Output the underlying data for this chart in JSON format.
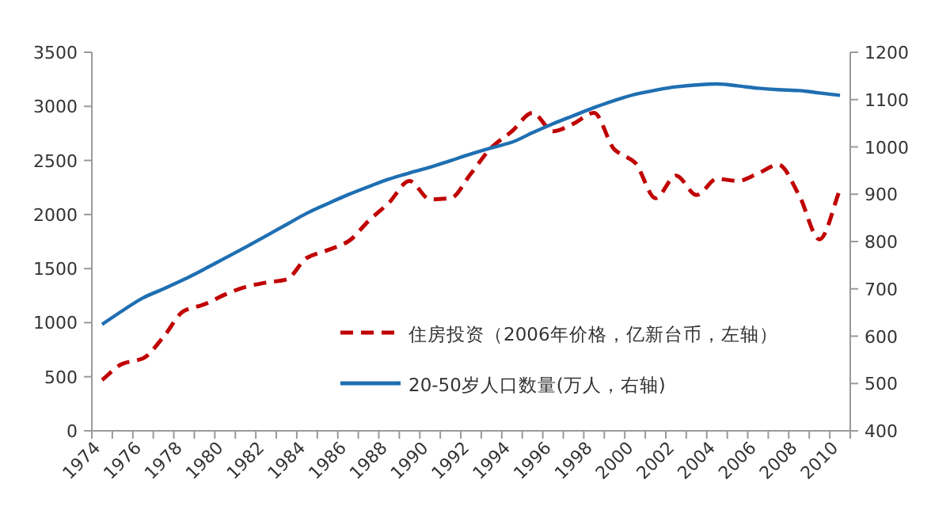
{
  "chart_data": {
    "type": "line",
    "categories": [
      "1974",
      null,
      "1976",
      null,
      "1978",
      null,
      "1980",
      null,
      "1982",
      null,
      "1984",
      null,
      "1986",
      null,
      "1988",
      null,
      "1990",
      null,
      "1992",
      null,
      "1994",
      null,
      "1996",
      null,
      "1998",
      null,
      "2000",
      null,
      "2002",
      null,
      "2004",
      null,
      "2006",
      null,
      "2008",
      null,
      "2010"
    ],
    "series": [
      {
        "name": "住房投资（2006年价格，亿新台币，左轴）",
        "color": "#c00000",
        "line_style": "dashed",
        "values": [
          470,
          620,
          670,
          870,
          1110,
          1170,
          1260,
          1330,
          1370,
          1400,
          1600,
          1670,
          1750,
          1940,
          2110,
          2310,
          2140,
          2150,
          2380,
          2620,
          2770,
          2940,
          2770,
          2840,
          2940,
          2600,
          2480,
          2150,
          2360,
          2180,
          2330,
          2310,
          2380,
          2460,
          2180,
          1770,
          2230
        ]
      },
      {
        "name": "20-50岁人口数量(万人，右轴)",
        "color": "#1f6fb2",
        "line_style": "solid",
        "axis": "y2",
        "values": [
          625,
          654,
          681,
          700,
          720,
          742,
          765,
          788,
          812,
          836,
          860,
          880,
          899,
          916,
          932,
          945,
          957,
          971,
          985,
          998,
          1010,
          1030,
          1049,
          1066,
          1083,
          1098,
          1111,
          1120,
          1127,
          1131,
          1133,
          1129,
          1124,
          1121,
          1119,
          1114,
          1109
        ]
      }
    ],
    "ylim": [
      0,
      3500
    ],
    "yticks": [
      0,
      500,
      1000,
      1500,
      2000,
      2500,
      3000,
      3500
    ],
    "y2lim": [
      400,
      1200
    ],
    "y2ticks": [
      400,
      500,
      600,
      700,
      800,
      900,
      1000,
      1100,
      1200
    ],
    "grid": false,
    "legend": "bottom right",
    "marker": "none"
  }
}
